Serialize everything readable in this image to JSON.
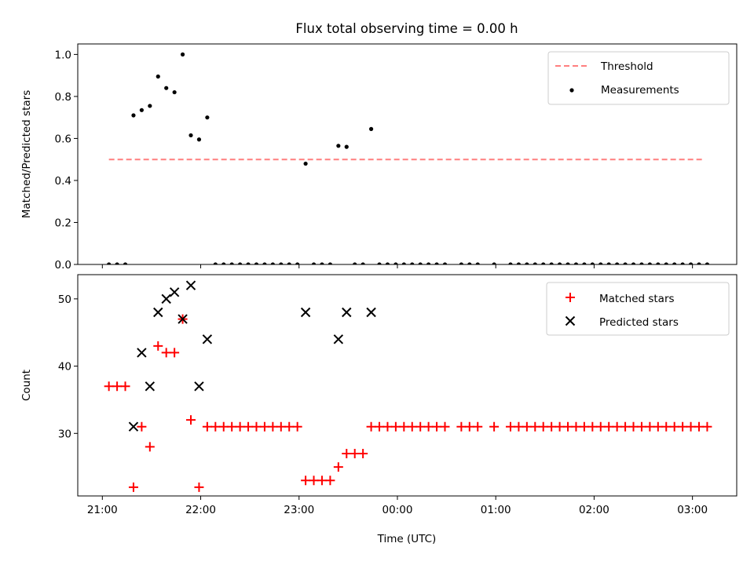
{
  "title": "Flux total observing time = 0.00 h",
  "xlabel": "Time (UTC)",
  "xticks": [
    "21:00",
    "22:00",
    "23:00",
    "00:00",
    "01:00",
    "02:00",
    "03:00"
  ],
  "colors": {
    "threshold": "#ff7f7f",
    "measurements": "#000000",
    "matched": "#ff0000",
    "predicted": "#000000"
  },
  "chart_data": [
    {
      "type": "scatter",
      "ylabel": "Matched/Predicted stars",
      "ylim": [
        0,
        1.05
      ],
      "yticks": [
        "0.0",
        "0.2",
        "0.4",
        "0.6",
        "0.8",
        "1.0"
      ],
      "xlim": [
        "20:45",
        "03:27"
      ],
      "legend": {
        "placement": "top-right",
        "entries": [
          "Threshold",
          "Measurements"
        ]
      },
      "threshold": {
        "name": "Threshold",
        "value": 0.5,
        "x": [
          "21:04",
          "03:07"
        ],
        "style": "dashed"
      },
      "series": [
        {
          "name": "Measurements",
          "points": [
            [
              "21:04",
              0.0
            ],
            [
              "21:09",
              0.0
            ],
            [
              "21:14",
              0.0
            ],
            [
              "21:19",
              0.71
            ],
            [
              "21:24",
              0.735
            ],
            [
              "21:29",
              0.755
            ],
            [
              "21:34",
              0.895
            ],
            [
              "21:39",
              0.84
            ],
            [
              "21:44",
              0.82
            ],
            [
              "21:49",
              1.0
            ],
            [
              "21:54",
              0.615
            ],
            [
              "21:59",
              0.595
            ],
            [
              "22:04",
              0.7
            ],
            [
              "22:09",
              0.0
            ],
            [
              "22:14",
              0.0
            ],
            [
              "22:19",
              0.0
            ],
            [
              "22:24",
              0.0
            ],
            [
              "22:29",
              0.0
            ],
            [
              "22:34",
              0.0
            ],
            [
              "22:39",
              0.0
            ],
            [
              "22:44",
              0.0
            ],
            [
              "22:49",
              0.0
            ],
            [
              "22:54",
              0.0
            ],
            [
              "22:59",
              0.0
            ],
            [
              "23:04",
              0.48
            ],
            [
              "23:09",
              0.0
            ],
            [
              "23:14",
              0.0
            ],
            [
              "23:19",
              0.0
            ],
            [
              "23:24",
              0.565
            ],
            [
              "23:29",
              0.56
            ],
            [
              "23:34",
              0.0
            ],
            [
              "23:39",
              0.0
            ],
            [
              "23:44",
              0.645
            ],
            [
              "23:49",
              0.0
            ],
            [
              "23:54",
              0.0
            ],
            [
              "23:59",
              0.0
            ],
            [
              "00:04",
              0.0
            ],
            [
              "00:09",
              0.0
            ],
            [
              "00:14",
              0.0
            ],
            [
              "00:19",
              0.0
            ],
            [
              "00:24",
              0.0
            ],
            [
              "00:29",
              0.0
            ],
            [
              "00:39",
              0.0
            ],
            [
              "00:44",
              0.0
            ],
            [
              "00:49",
              0.0
            ],
            [
              "00:59",
              0.0
            ],
            [
              "01:09",
              0.0
            ],
            [
              "01:14",
              0.0
            ],
            [
              "01:19",
              0.0
            ],
            [
              "01:24",
              0.0
            ],
            [
              "01:29",
              0.0
            ],
            [
              "01:34",
              0.0
            ],
            [
              "01:39",
              0.0
            ],
            [
              "01:44",
              0.0
            ],
            [
              "01:49",
              0.0
            ],
            [
              "01:54",
              0.0
            ],
            [
              "01:59",
              0.0
            ],
            [
              "02:04",
              0.0
            ],
            [
              "02:09",
              0.0
            ],
            [
              "02:14",
              0.0
            ],
            [
              "02:19",
              0.0
            ],
            [
              "02:24",
              0.0
            ],
            [
              "02:29",
              0.0
            ],
            [
              "02:34",
              0.0
            ],
            [
              "02:39",
              0.0
            ],
            [
              "02:44",
              0.0
            ],
            [
              "02:49",
              0.0
            ],
            [
              "02:54",
              0.0
            ],
            [
              "02:59",
              0.0
            ],
            [
              "03:04",
              0.0
            ],
            [
              "03:09",
              0.0
            ]
          ]
        }
      ]
    },
    {
      "type": "scatter",
      "ylabel": "Count",
      "ylim": [
        20.7,
        53.6
      ],
      "yticks": [
        "30",
        "40",
        "50"
      ],
      "xlim": [
        "20:45",
        "03:27"
      ],
      "legend": {
        "placement": "top-right",
        "entries": [
          "Matched stars",
          "Predicted stars"
        ]
      },
      "series": [
        {
          "name": "Matched stars",
          "marker": "plus",
          "points": [
            [
              "21:04",
              37
            ],
            [
              "21:09",
              37
            ],
            [
              "21:14",
              37
            ],
            [
              "21:19",
              22
            ],
            [
              "21:24",
              31
            ],
            [
              "21:29",
              28
            ],
            [
              "21:34",
              43
            ],
            [
              "21:39",
              42
            ],
            [
              "21:44",
              42
            ],
            [
              "21:49",
              47
            ],
            [
              "21:54",
              32
            ],
            [
              "21:59",
              22
            ],
            [
              "22:04",
              31
            ],
            [
              "22:09",
              31
            ],
            [
              "22:14",
              31
            ],
            [
              "22:19",
              31
            ],
            [
              "22:24",
              31
            ],
            [
              "22:29",
              31
            ],
            [
              "22:34",
              31
            ],
            [
              "22:39",
              31
            ],
            [
              "22:44",
              31
            ],
            [
              "22:49",
              31
            ],
            [
              "22:54",
              31
            ],
            [
              "22:59",
              31
            ],
            [
              "23:04",
              23
            ],
            [
              "23:09",
              23
            ],
            [
              "23:14",
              23
            ],
            [
              "23:19",
              23
            ],
            [
              "23:24",
              25
            ],
            [
              "23:29",
              27
            ],
            [
              "23:34",
              27
            ],
            [
              "23:39",
              27
            ],
            [
              "23:44",
              31
            ],
            [
              "23:49",
              31
            ],
            [
              "23:54",
              31
            ],
            [
              "23:59",
              31
            ],
            [
              "00:04",
              31
            ],
            [
              "00:09",
              31
            ],
            [
              "00:14",
              31
            ],
            [
              "00:19",
              31
            ],
            [
              "00:24",
              31
            ],
            [
              "00:29",
              31
            ],
            [
              "00:39",
              31
            ],
            [
              "00:44",
              31
            ],
            [
              "00:49",
              31
            ],
            [
              "00:59",
              31
            ],
            [
              "01:09",
              31
            ],
            [
              "01:14",
              31
            ],
            [
              "01:19",
              31
            ],
            [
              "01:24",
              31
            ],
            [
              "01:29",
              31
            ],
            [
              "01:34",
              31
            ],
            [
              "01:39",
              31
            ],
            [
              "01:44",
              31
            ],
            [
              "01:49",
              31
            ],
            [
              "01:54",
              31
            ],
            [
              "01:59",
              31
            ],
            [
              "02:04",
              31
            ],
            [
              "02:09",
              31
            ],
            [
              "02:14",
              31
            ],
            [
              "02:19",
              31
            ],
            [
              "02:24",
              31
            ],
            [
              "02:29",
              31
            ],
            [
              "02:34",
              31
            ],
            [
              "02:39",
              31
            ],
            [
              "02:44",
              31
            ],
            [
              "02:49",
              31
            ],
            [
              "02:54",
              31
            ],
            [
              "02:59",
              31
            ],
            [
              "03:04",
              31
            ],
            [
              "03:09",
              31
            ]
          ]
        },
        {
          "name": "Predicted stars",
          "marker": "x",
          "points": [
            [
              "21:19",
              31
            ],
            [
              "21:24",
              42
            ],
            [
              "21:29",
              37
            ],
            [
              "21:34",
              48
            ],
            [
              "21:39",
              50
            ],
            [
              "21:44",
              51
            ],
            [
              "21:49",
              47
            ],
            [
              "21:54",
              52
            ],
            [
              "21:59",
              37
            ],
            [
              "22:04",
              44
            ],
            [
              "23:04",
              48
            ],
            [
              "23:24",
              44
            ],
            [
              "23:29",
              48
            ],
            [
              "23:44",
              48
            ]
          ]
        }
      ]
    }
  ]
}
